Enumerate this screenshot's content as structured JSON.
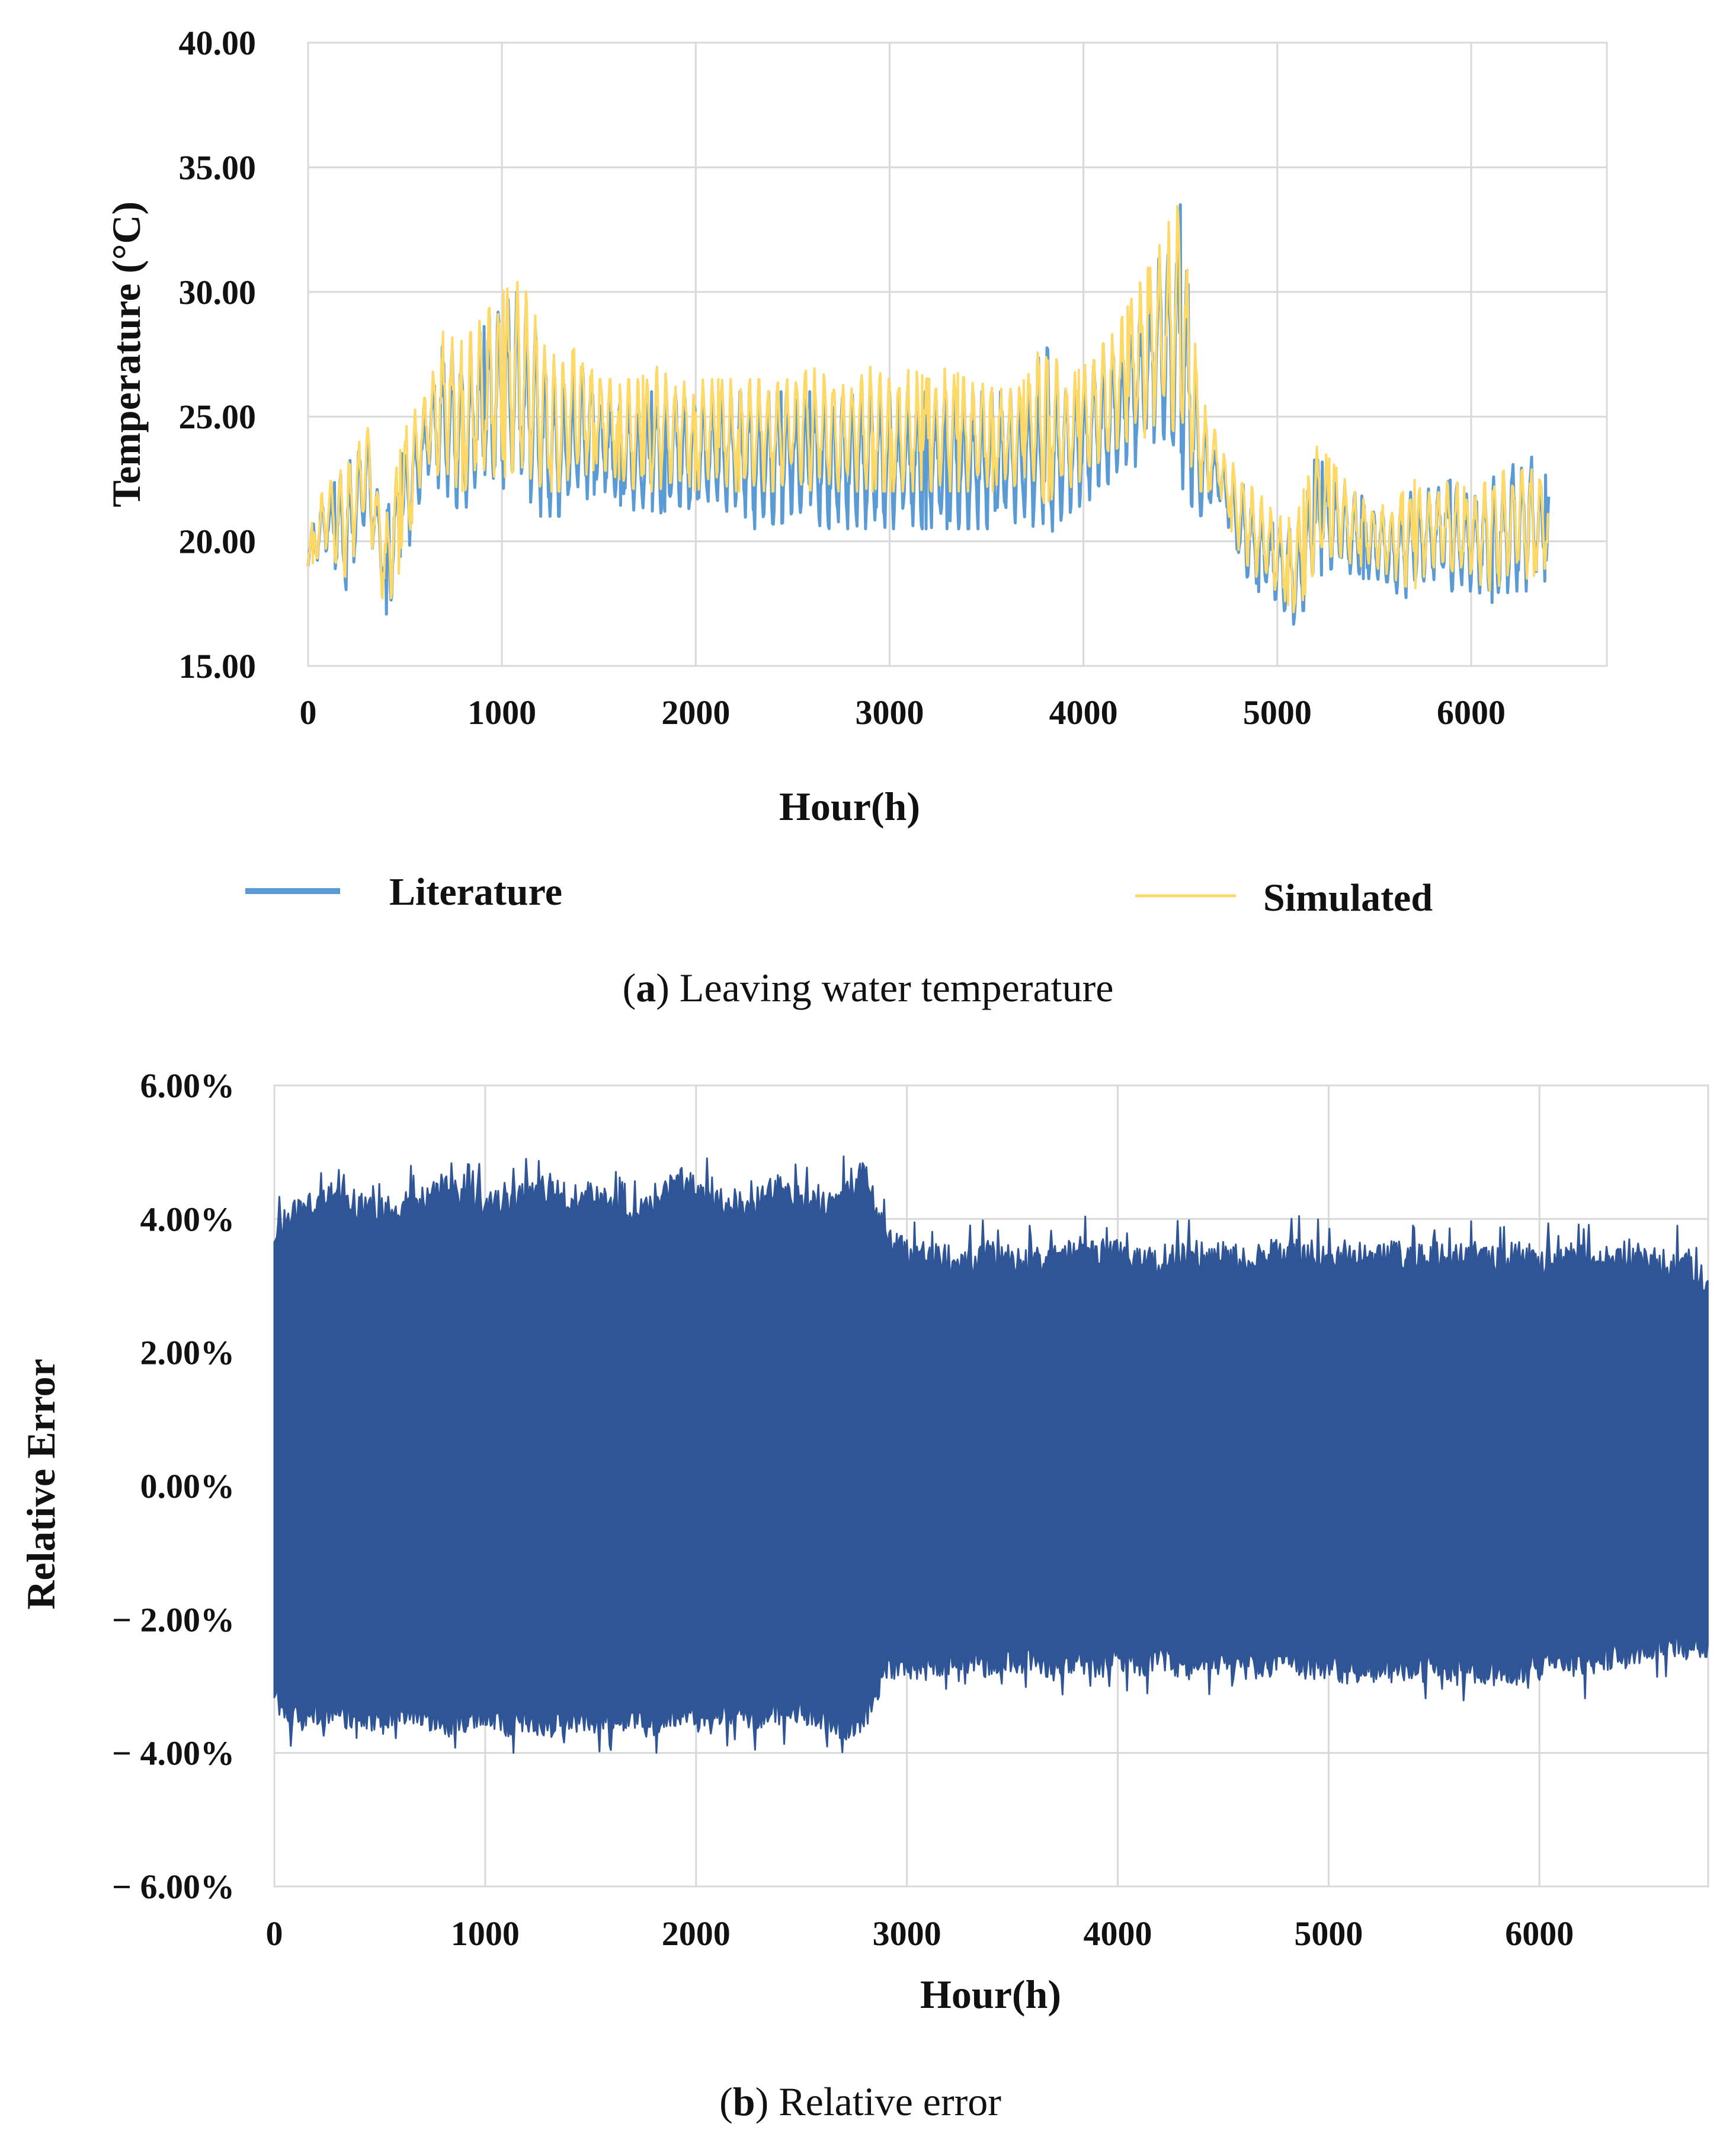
{
  "chart_data": [
    {
      "id": "a",
      "type": "line",
      "caption_letter": "a",
      "caption_text": "Leaving water temperature",
      "xlabel": "Hour(h)",
      "ylabel": "Temperature (°C)",
      "xlim": [
        0,
        6700
      ],
      "ylim": [
        15,
        40
      ],
      "xticks": [
        0,
        1000,
        2000,
        3000,
        4000,
        5000,
        6000
      ],
      "yticks": [
        "15.00",
        "20.00",
        "25.00",
        "30.00",
        "35.00",
        "40.00"
      ],
      "grid": true,
      "legend_position": "bottom",
      "series": [
        {
          "name": "Literature",
          "color": "#5b9bd5",
          "x": [
            0,
            100,
            200,
            300,
            400,
            500,
            600,
            700,
            800,
            900,
            1000,
            1100,
            1200,
            1300,
            1400,
            1500,
            1600,
            1700,
            1800,
            1900,
            2000,
            2100,
            2200,
            2300,
            2400,
            2500,
            2600,
            2700,
            2800,
            2900,
            3000,
            3100,
            3200,
            3300,
            3400,
            3500,
            3600,
            3700,
            3800,
            3900,
            4000,
            4100,
            4200,
            4300,
            4400,
            4500,
            4600,
            4700,
            4800,
            4900,
            5000,
            5100,
            5200,
            5300,
            5400,
            5500,
            5600,
            5700,
            5800,
            5900,
            6000,
            6100,
            6200,
            6300,
            6400
          ],
          "low": [
            19.0,
            19.5,
            18.0,
            21.0,
            17.0,
            19.0,
            22.5,
            22.0,
            21.0,
            22.0,
            22.0,
            22.0,
            21.0,
            21.0,
            21.5,
            22.0,
            21.5,
            21.0,
            21.0,
            21.5,
            21.0,
            21.5,
            21.0,
            20.5,
            20.5,
            21.0,
            20.5,
            20.5,
            20.5,
            20.5,
            20.5,
            20.5,
            20.5,
            20.5,
            20.5,
            20.5,
            20.5,
            21.0,
            20.0,
            21.0,
            21.5,
            22.0,
            23.0,
            23.0,
            24.5,
            22.0,
            21.0,
            21.5,
            19.0,
            18.0,
            17.5,
            16.5,
            18.5,
            19.0,
            18.5,
            18.5,
            18.0,
            17.5,
            18.5,
            18.0,
            18.0,
            17.5,
            18.0,
            18.0,
            18.5
          ],
          "high": [
            20.5,
            22.0,
            23.0,
            24.5,
            21.0,
            24.0,
            25.5,
            28.0,
            27.5,
            28.5,
            30.0,
            30.0,
            28.0,
            26.0,
            27.5,
            26.0,
            25.5,
            26.0,
            26.0,
            26.0,
            26.0,
            26.0,
            26.0,
            26.0,
            26.0,
            26.0,
            26.0,
            26.0,
            26.0,
            26.0,
            26.0,
            26.0,
            26.0,
            26.0,
            26.0,
            26.0,
            26.0,
            26.0,
            28.0,
            26.0,
            26.5,
            27.5,
            28.5,
            30.0,
            31.5,
            33.5,
            25.5,
            23.5,
            22.5,
            21.5,
            20.5,
            20.5,
            23.5,
            22.5,
            22.0,
            21.5,
            21.0,
            22.5,
            22.0,
            22.5,
            22.0,
            22.5,
            23.0,
            23.5,
            22.5
          ]
        },
        {
          "name": "Simulated",
          "color": "#ffd966",
          "x": [
            0,
            100,
            200,
            300,
            400,
            500,
            600,
            700,
            800,
            900,
            1000,
            1100,
            1200,
            1300,
            1400,
            1500,
            1600,
            1700,
            1800,
            1900,
            2000,
            2100,
            2200,
            2300,
            2400,
            2500,
            2600,
            2700,
            2800,
            2900,
            3000,
            3100,
            3200,
            3300,
            3400,
            3500,
            3600,
            3700,
            3800,
            3900,
            4000,
            4100,
            4200,
            4300,
            4400,
            4500,
            4600,
            4700,
            4800,
            4900,
            5000,
            5100,
            5200,
            5300,
            5400,
            5500,
            5600,
            5700,
            5800,
            5900,
            6000,
            6100,
            6200,
            6300,
            6400
          ],
          "low": [
            19.0,
            19.5,
            18.5,
            21.0,
            17.0,
            19.5,
            23.0,
            22.5,
            22.0,
            22.5,
            22.5,
            23.0,
            22.0,
            22.0,
            22.5,
            23.0,
            22.5,
            22.0,
            22.0,
            22.5,
            22.0,
            22.5,
            22.0,
            22.0,
            22.0,
            22.5,
            22.0,
            22.0,
            22.0,
            22.0,
            22.0,
            22.0,
            22.0,
            22.0,
            22.0,
            22.0,
            22.0,
            22.5,
            21.5,
            22.0,
            22.5,
            23.0,
            24.0,
            24.0,
            25.0,
            23.5,
            22.0,
            22.0,
            19.5,
            18.5,
            18.0,
            17.0,
            19.0,
            19.5,
            19.0,
            19.0,
            18.5,
            18.0,
            19.0,
            18.5,
            18.5,
            18.0,
            18.5,
            18.5,
            19.0
          ],
          "high": [
            20.5,
            22.5,
            23.0,
            25.0,
            21.0,
            24.5,
            26.0,
            28.5,
            28.0,
            29.0,
            30.0,
            30.5,
            28.5,
            27.0,
            28.0,
            26.5,
            26.5,
            26.5,
            27.0,
            26.5,
            26.5,
            26.5,
            26.5,
            26.5,
            26.5,
            26.5,
            27.0,
            26.5,
            26.5,
            27.0,
            26.5,
            27.0,
            26.5,
            27.0,
            26.5,
            26.5,
            26.0,
            26.5,
            28.5,
            26.5,
            27.0,
            28.0,
            29.0,
            30.5,
            32.0,
            34.0,
            26.0,
            24.0,
            23.0,
            22.0,
            21.0,
            21.0,
            24.0,
            23.0,
            22.0,
            21.5,
            21.5,
            22.5,
            22.0,
            22.5,
            22.0,
            22.5,
            23.0,
            23.0,
            22.0
          ]
        }
      ]
    },
    {
      "id": "b",
      "type": "area",
      "caption_letter": "b",
      "caption_text": "Relative error",
      "xlabel": "Hour(h)",
      "ylabel": "Relative Error",
      "xlim": [
        0,
        6800
      ],
      "ylim": [
        -6,
        6
      ],
      "xticks": [
        0,
        1000,
        2000,
        3000,
        4000,
        5000,
        6000
      ],
      "yticks": [
        "6.00%",
        "4.00%",
        "2.00%",
        "0.00%",
        "− 2.00%",
        "− 4.00%",
        "− 6.00%"
      ],
      "grid": true,
      "series": [
        {
          "name": "Relative Error",
          "color": "#2f5597",
          "x": [
            0,
            100,
            200,
            300,
            400,
            500,
            600,
            700,
            800,
            900,
            1000,
            1100,
            1200,
            1300,
            1400,
            1500,
            1600,
            1700,
            1800,
            1900,
            2000,
            2100,
            2200,
            2300,
            2400,
            2500,
            2600,
            2700,
            2800,
            2900,
            3000,
            3100,
            3200,
            3300,
            3400,
            3500,
            3600,
            3700,
            3800,
            3900,
            4000,
            4100,
            4200,
            4300,
            4400,
            4500,
            4600,
            4700,
            4800,
            4900,
            5000,
            5100,
            5200,
            5300,
            5400,
            5500,
            5600,
            5700,
            5800,
            5900,
            6000,
            6100,
            6200,
            6300,
            6400,
            6500,
            6600,
            6700,
            6800
          ],
          "upper": [
            4.0,
            4.4,
            4.4,
            4.6,
            4.4,
            4.3,
            4.4,
            4.5,
            4.7,
            4.6,
            4.5,
            4.4,
            4.6,
            4.7,
            4.5,
            4.6,
            4.4,
            4.3,
            4.5,
            4.8,
            4.7,
            4.5,
            4.4,
            4.5,
            4.7,
            4.5,
            4.4,
            4.6,
            4.9,
            3.9,
            3.7,
            3.7,
            3.6,
            3.6,
            3.7,
            3.6,
            3.6,
            3.6,
            3.8,
            3.7,
            3.7,
            3.6,
            3.6,
            3.7,
            3.7,
            3.7,
            3.6,
            3.7,
            3.7,
            3.7,
            3.6,
            3.7,
            3.6,
            3.7,
            3.6,
            3.7,
            3.6,
            3.7,
            3.6,
            3.7,
            3.6,
            3.6,
            3.7,
            3.6,
            3.7,
            3.6,
            3.5,
            3.6,
            3.2
          ],
          "lower": [
            -3.3,
            -3.7,
            -3.6,
            -3.6,
            -3.7,
            -3.7,
            -3.6,
            -3.6,
            -3.8,
            -3.7,
            -3.6,
            -3.8,
            -3.7,
            -3.8,
            -3.7,
            -3.7,
            -3.7,
            -3.7,
            -3.8,
            -3.7,
            -3.7,
            -3.6,
            -3.6,
            -3.7,
            -3.6,
            -3.6,
            -3.7,
            -3.8,
            -3.7,
            -2.9,
            -2.9,
            -2.9,
            -2.9,
            -2.8,
            -2.9,
            -2.8,
            -2.8,
            -2.9,
            -2.8,
            -2.9,
            -2.8,
            -2.9,
            -2.8,
            -2.9,
            -2.9,
            -2.8,
            -2.9,
            -2.9,
            -2.8,
            -2.9,
            -2.9,
            -3.0,
            -2.9,
            -2.9,
            -3.0,
            -2.9,
            -2.9,
            -3.0,
            -3.0,
            -3.0,
            -2.9,
            -2.8,
            -2.9,
            -2.8,
            -2.7,
            -2.7,
            -2.6,
            -2.6,
            -2.6
          ]
        }
      ]
    }
  ]
}
